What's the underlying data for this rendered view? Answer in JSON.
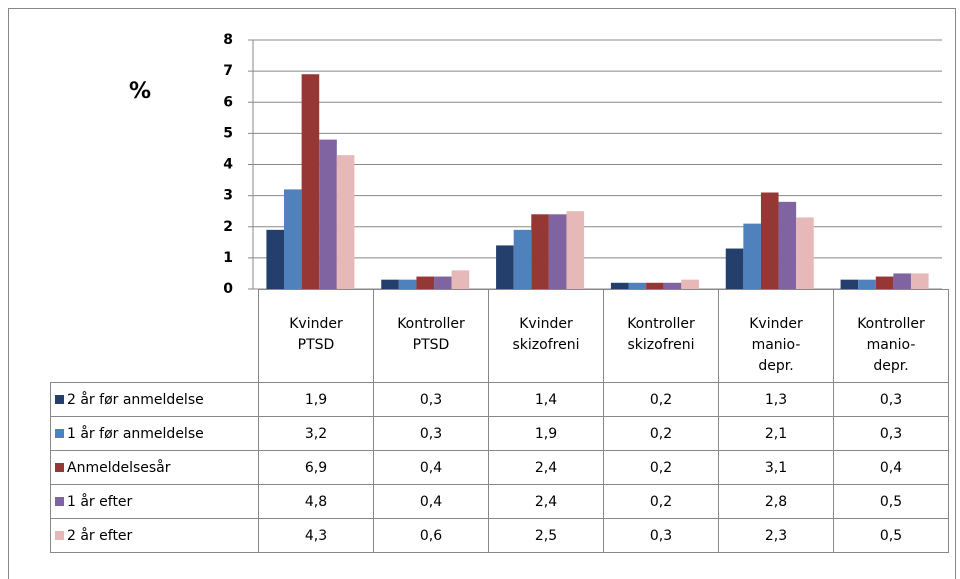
{
  "chart_data": {
    "type": "bar",
    "y_label": "%",
    "categories": [
      "Kvinder PTSD",
      "Kontroller PTSD",
      "Kvinder skizofreni",
      "Kontroller skizofreni",
      "Kvinder manio-depr.",
      "Kontroller manio-depr."
    ],
    "series": [
      {
        "name": "2 år før anmeldelse",
        "color": "#243f6b",
        "values": [
          1.9,
          0.3,
          1.4,
          0.2,
          1.3,
          0.3
        ],
        "value_labels": [
          "1,9",
          "0,3",
          "1,4",
          "0,2",
          "1,3",
          "0,3"
        ]
      },
      {
        "name": "1 år før anmeldelse",
        "color": "#4f81bd",
        "values": [
          3.2,
          0.3,
          1.9,
          0.2,
          2.1,
          0.3
        ],
        "value_labels": [
          "3,2",
          "0,3",
          "1,9",
          "0,2",
          "2,1",
          "0,3"
        ]
      },
      {
        "name": "Anmeldelsesår",
        "color": "#953735",
        "values": [
          6.9,
          0.4,
          2.4,
          0.2,
          3.1,
          0.4
        ],
        "value_labels": [
          "6,9",
          "0,4",
          "2,4",
          "0,2",
          "3,1",
          "0,4"
        ]
      },
      {
        "name": "1 år efter",
        "color": "#8064a2",
        "values": [
          4.8,
          0.4,
          2.4,
          0.2,
          2.8,
          0.5
        ],
        "value_labels": [
          "4,8",
          "0,4",
          "2,4",
          "0,2",
          "2,8",
          "0,5"
        ]
      },
      {
        "name": "2 år efter",
        "color": "#e6b9b8",
        "values": [
          4.3,
          0.6,
          2.5,
          0.3,
          2.3,
          0.5
        ],
        "value_labels": [
          "4,3",
          "0,6",
          "2,5",
          "0,3",
          "2,3",
          "0,5"
        ]
      }
    ],
    "ylim": [
      0,
      8
    ],
    "yticks": [
      0,
      1,
      2,
      3,
      4,
      5,
      6,
      7,
      8
    ],
    "grid": true
  }
}
